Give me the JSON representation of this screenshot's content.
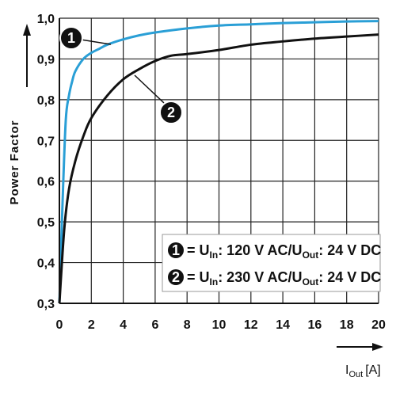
{
  "chart_data": {
    "type": "line",
    "ylabel": "Power Factor",
    "xlabel_main": "I",
    "xlabel_sub": "Out",
    "xlabel_unit": "[A]",
    "xlim": [
      0,
      20
    ],
    "ylim": [
      0.3,
      1.0
    ],
    "x_ticks": [
      "0",
      "2",
      "4",
      "6",
      "8",
      "10",
      "12",
      "14",
      "16",
      "18",
      "20"
    ],
    "y_ticks": [
      "0,3",
      "0,4",
      "0,5",
      "0,6",
      "0,7",
      "0,8",
      "0,9",
      "1,0"
    ],
    "grid": true,
    "legend_position": "bottom-right",
    "series": [
      {
        "marker": "1",
        "color": "#2a9fd6",
        "x": [
          0,
          0.2,
          0.4,
          0.6,
          0.8,
          1,
          1.5,
          2,
          2.5,
          3,
          4,
          5,
          6,
          8,
          10,
          12,
          14,
          16,
          18,
          20
        ],
        "y": [
          0.3,
          0.55,
          0.75,
          0.81,
          0.845,
          0.87,
          0.9,
          0.915,
          0.925,
          0.935,
          0.948,
          0.958,
          0.965,
          0.975,
          0.982,
          0.985,
          0.988,
          0.99,
          0.992,
          0.993
        ]
      },
      {
        "marker": "2",
        "color": "#111111",
        "x": [
          0,
          0.3,
          0.6,
          1,
          1.5,
          2,
          3,
          4,
          5,
          6,
          7,
          8,
          10,
          12,
          14,
          16,
          18,
          20
        ],
        "y": [
          0.3,
          0.48,
          0.58,
          0.65,
          0.71,
          0.755,
          0.81,
          0.85,
          0.875,
          0.895,
          0.908,
          0.912,
          0.922,
          0.935,
          0.943,
          0.95,
          0.955,
          0.96
        ]
      }
    ],
    "legend": [
      {
        "marker": "1",
        "prefix": "= U",
        "sub1": "In",
        "mid": ": 120 V AC/U",
        "sub2": "Out",
        "suffix": ": 24 V DC"
      },
      {
        "marker": "2",
        "prefix": "= U",
        "sub1": "In",
        "mid": ": 230 V AC/U",
        "sub2": "Out",
        "suffix": ": 24 V DC"
      }
    ]
  }
}
